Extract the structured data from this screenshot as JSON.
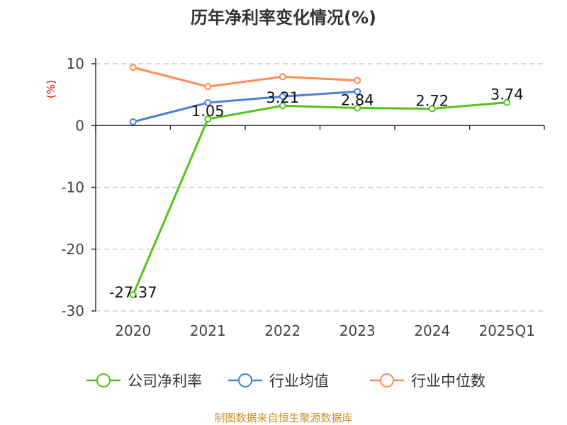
{
  "chart_data": {
    "type": "line",
    "title": "历年净利率变化情况(%)",
    "ylabel": "(%)",
    "xlabel": "",
    "categories": [
      "2020",
      "2021",
      "2022",
      "2023",
      "2024",
      "2025Q1"
    ],
    "ylim": [
      -30,
      10
    ],
    "yticks": [
      10,
      0,
      -10,
      -20,
      -30
    ],
    "grid": true,
    "legend_position": "bottom",
    "series": [
      {
        "name": "公司净利率",
        "color": "#52c41a",
        "values": [
          -27.37,
          1.05,
          3.21,
          2.84,
          2.72,
          3.74
        ],
        "labels": [
          "-27.37",
          "1.05",
          "3.21",
          "2.84",
          "2.72",
          "3.74"
        ]
      },
      {
        "name": "行业均值",
        "color": "#4a7fde",
        "values": [
          0.6,
          3.7,
          4.7,
          5.5,
          null,
          null
        ]
      },
      {
        "name": "行业中位数",
        "color": "#ff8c55",
        "values": [
          9.4,
          6.3,
          7.9,
          7.3,
          null,
          null
        ]
      }
    ]
  },
  "footer": {
    "source": "制图数据来自恒生聚源数据库"
  }
}
